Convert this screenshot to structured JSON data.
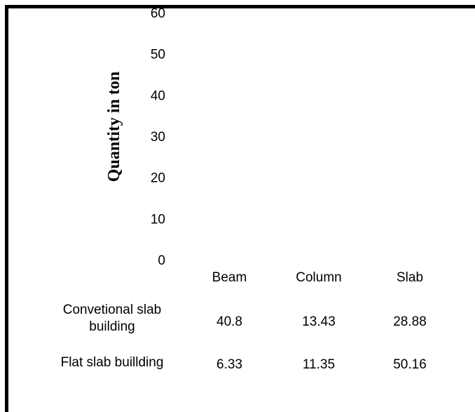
{
  "chart_data": {
    "type": "bar",
    "title": "",
    "xlabel": "",
    "ylabel": "Quantity in ton",
    "ylim": [
      0,
      60
    ],
    "yticks": [
      "0",
      "10",
      "20",
      "30",
      "40",
      "50",
      "60"
    ],
    "categories": [
      "Beam",
      "Column",
      "Slab"
    ],
    "series": [
      {
        "name": "Convetional slab building",
        "values": [
          40.8,
          13.43,
          28.88
        ]
      },
      {
        "name": "Flat slab buillding",
        "values": [
          6.33,
          11.35,
          50.16
        ]
      }
    ],
    "table": {
      "rows": [
        {
          "label": "Convetional slab building",
          "cells": [
            "40.8",
            "13.43",
            "28.88"
          ]
        },
        {
          "label": "Flat slab buillding",
          "cells": [
            "6.33",
            "11.35",
            "50.16"
          ]
        }
      ]
    },
    "grid": false,
    "legend": "data-table"
  }
}
